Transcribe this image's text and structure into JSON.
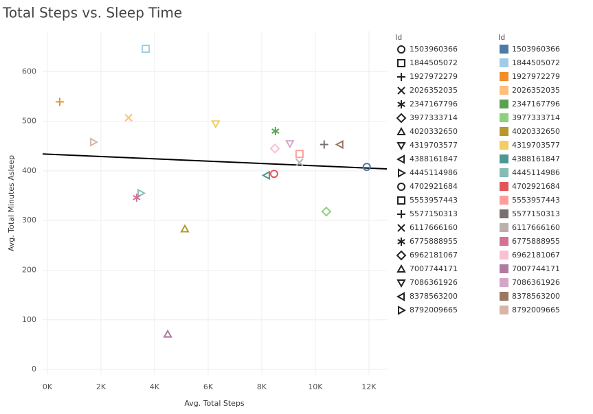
{
  "chart_data": {
    "type": "scatter",
    "title": "Total Steps vs. Sleep Time",
    "x_label": "Avg. Total Steps",
    "y_label": "Avg. Total Minutes Asleep",
    "legend_title": "Id",
    "xlim": [
      -180,
      12670
    ],
    "ylim": [
      -11,
      682
    ],
    "xticks": [
      {
        "value": 0,
        "label": "0K"
      },
      {
        "value": 2000,
        "label": "2K"
      },
      {
        "value": 4000,
        "label": "4K"
      },
      {
        "value": 6000,
        "label": "6K"
      },
      {
        "value": 8000,
        "label": "8K"
      },
      {
        "value": 10000,
        "label": "10K"
      },
      {
        "value": 12000,
        "label": "12K"
      }
    ],
    "yticks": [
      0,
      100,
      200,
      300,
      400,
      500,
      600
    ],
    "grid": true,
    "trend_line": {
      "x": [
        -180,
        12670
      ],
      "y": [
        434,
        404
      ]
    },
    "series": [
      {
        "name": "1503960366",
        "color": "#4e79a7",
        "shape": "circle",
        "x": 11920,
        "y": 408
      },
      {
        "name": "1844505072",
        "color": "#a0cbe8",
        "shape": "square",
        "x": 3670,
        "y": 646
      },
      {
        "name": "1927972279",
        "color": "#f28e2b",
        "shape": "plus",
        "x": 460,
        "y": 539
      },
      {
        "name": "2026352035",
        "color": "#ffbe7d",
        "shape": "cross",
        "x": 3030,
        "y": 507
      },
      {
        "name": "2347167796",
        "color": "#59a14f",
        "shape": "asterisk",
        "x": 8510,
        "y": 480
      },
      {
        "name": "3977333714",
        "color": "#8cd17d",
        "shape": "diamond",
        "x": 10410,
        "y": 318
      },
      {
        "name": "4020332650",
        "color": "#b6992d",
        "shape": "triangle-up",
        "x": 5130,
        "y": 283
      },
      {
        "name": "4319703577",
        "color": "#f1ce63",
        "shape": "triangle-down",
        "x": 6280,
        "y": 495
      },
      {
        "name": "4388161847",
        "color": "#499894",
        "shape": "triangle-left",
        "x": 8180,
        "y": 391
      },
      {
        "name": "4445114986",
        "color": "#86bcb6",
        "shape": "triangle-right",
        "x": 3490,
        "y": 355
      },
      {
        "name": "4702921684",
        "color": "#e15759",
        "shape": "circle",
        "x": 8460,
        "y": 394
      },
      {
        "name": "5553957443",
        "color": "#ff9d9a",
        "shape": "square",
        "x": 9410,
        "y": 434
      },
      {
        "name": "5577150313",
        "color": "#79706e",
        "shape": "plus",
        "x": 10330,
        "y": 453
      },
      {
        "name": "6117666160",
        "color": "#bab0ac",
        "shape": "cross",
        "x": 9410,
        "y": 417
      },
      {
        "name": "6775888955",
        "color": "#d37295",
        "shape": "asterisk",
        "x": 3330,
        "y": 346
      },
      {
        "name": "6962181067",
        "color": "#fabfd2",
        "shape": "diamond",
        "x": 8490,
        "y": 445
      },
      {
        "name": "7007744171",
        "color": "#b07aa1",
        "shape": "triangle-up",
        "x": 4490,
        "y": 71
      },
      {
        "name": "7086361926",
        "color": "#d4a6c8",
        "shape": "triangle-down",
        "x": 9050,
        "y": 455
      },
      {
        "name": "8378563200",
        "color": "#9d7660",
        "shape": "triangle-left",
        "x": 10920,
        "y": 453
      },
      {
        "name": "8792009665",
        "color": "#d7b5a6",
        "shape": "triangle-right",
        "x": 1720,
        "y": 458
      }
    ]
  }
}
